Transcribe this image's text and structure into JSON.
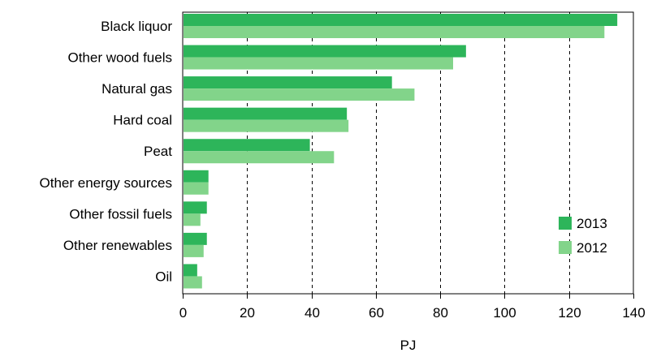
{
  "chart_data": {
    "type": "bar",
    "orientation": "horizontal",
    "title": "",
    "xlabel": "PJ",
    "ylabel": "",
    "xlim": [
      0,
      140
    ],
    "xticks": [
      0,
      20,
      40,
      60,
      80,
      100,
      120,
      140
    ],
    "grid": "vertical dashed",
    "legend_position": "bottom-right inside plot",
    "categories": [
      "Black liquor",
      "Other wood fuels",
      "Natural gas",
      "Hard coal",
      "Peat",
      "Other energy sources",
      "Other fossil fuels",
      "Other renewables",
      "Oil"
    ],
    "series": [
      {
        "name": "2013",
        "color": "#2db55a",
        "values": [
          135,
          88,
          65,
          51,
          39.5,
          8,
          7.5,
          7.5,
          4.5
        ]
      },
      {
        "name": "2012",
        "color": "#82d48a",
        "values": [
          131,
          84,
          72,
          51.5,
          47,
          8,
          5.5,
          6.5,
          6
        ]
      }
    ]
  }
}
